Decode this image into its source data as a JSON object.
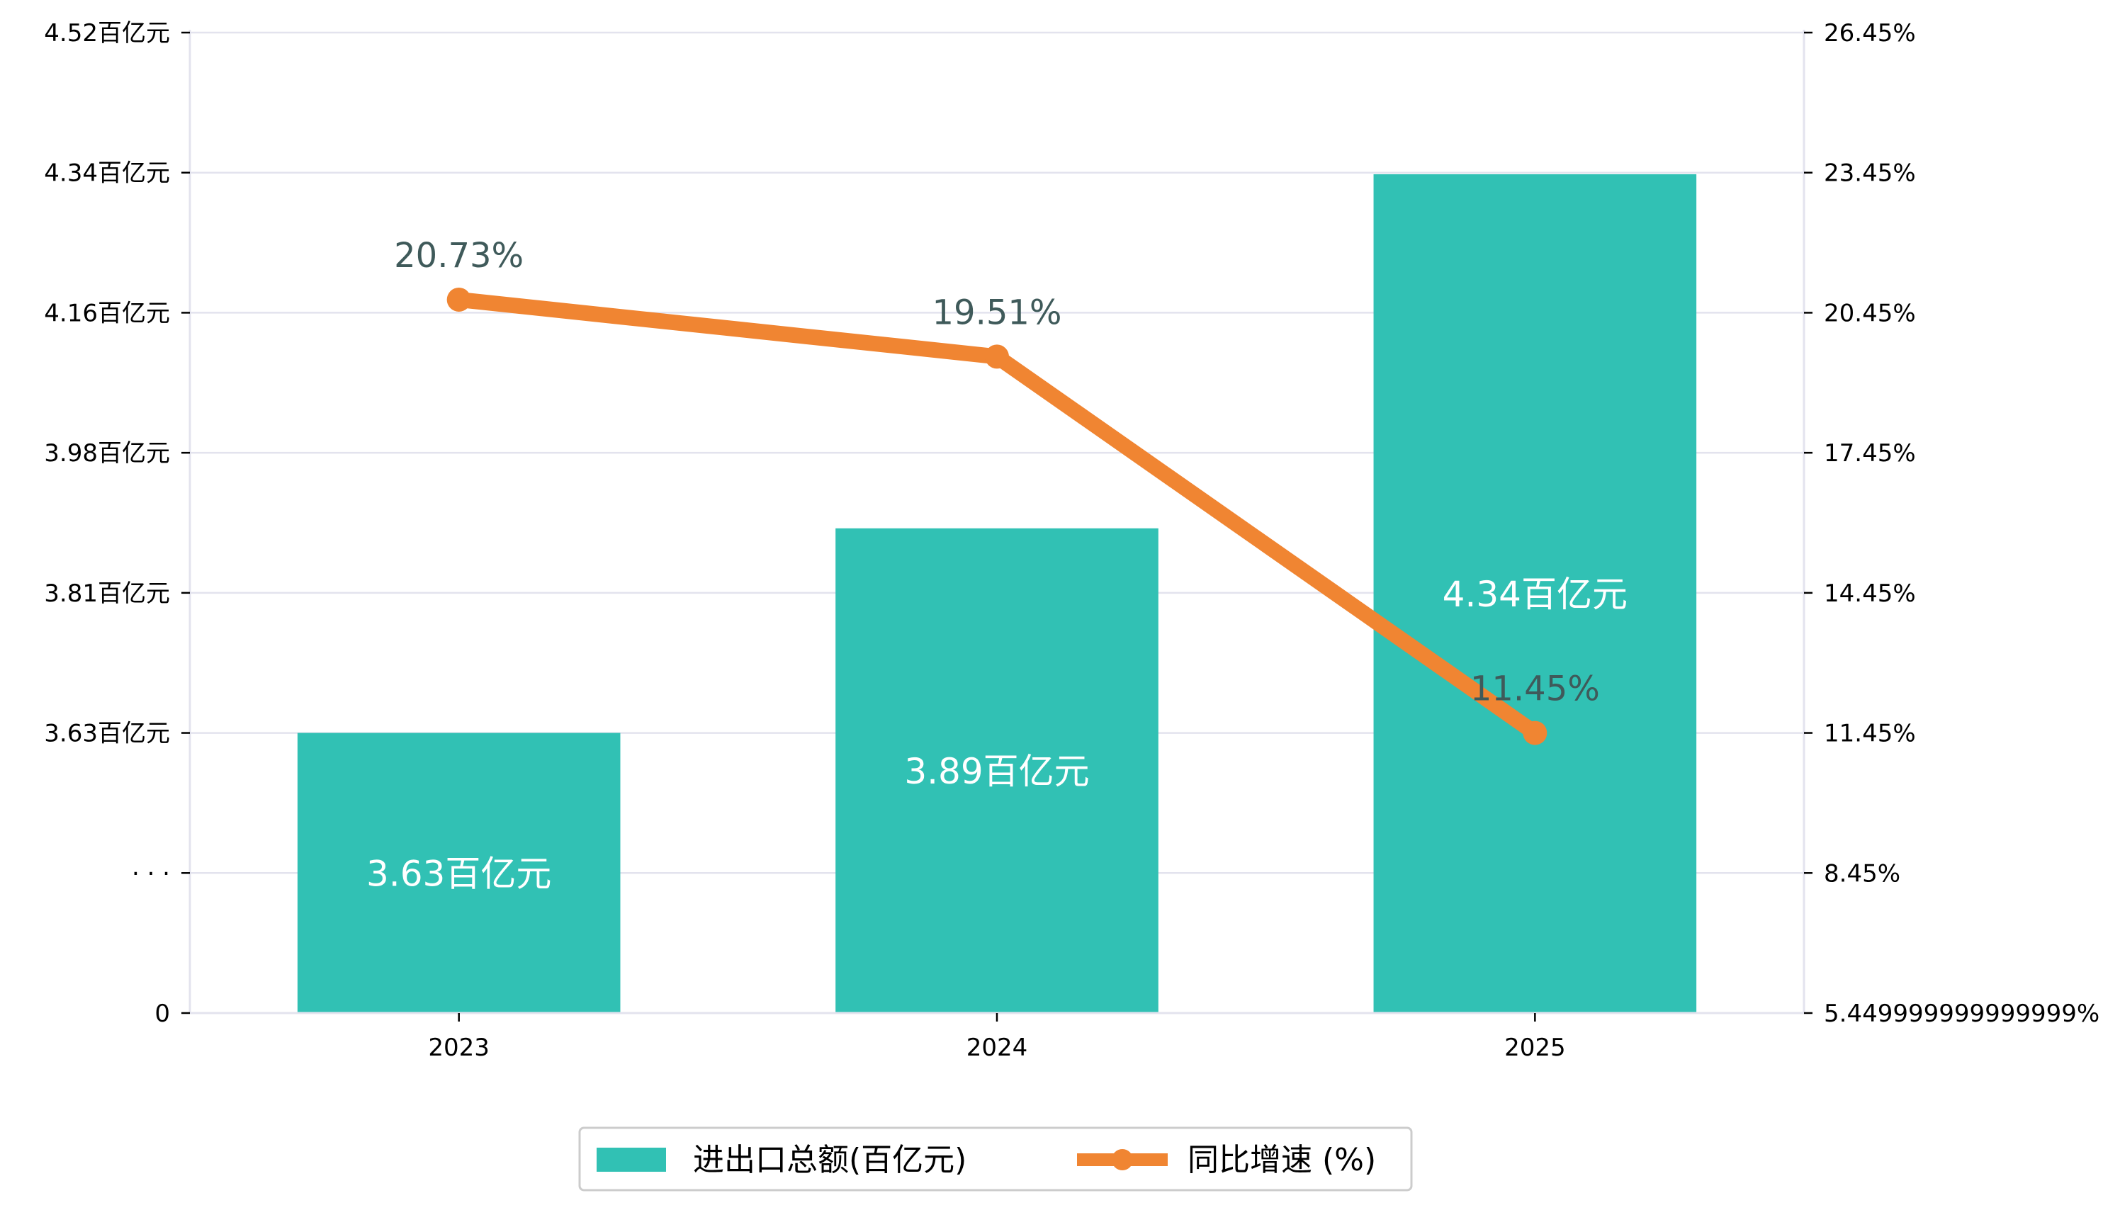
{
  "chart_data": {
    "type": "bar",
    "categories": [
      "2023",
      "2024",
      "2025"
    ],
    "series": [
      {
        "name": "进出口总额(百亿元)",
        "type": "bar",
        "axis": "left",
        "values": [
          3.63,
          3.89,
          4.34
        ],
        "labels": [
          "3.63百亿元",
          "3.89百亿元",
          "4.34百亿元"
        ],
        "color": "#31c1b4"
      },
      {
        "name": "同比增速 (%)",
        "type": "line",
        "axis": "right",
        "values": [
          20.73,
          19.51,
          11.45
        ],
        "labels": [
          "20.73%",
          "19.51%",
          "11.45%"
        ],
        "color": "#f08532"
      }
    ],
    "left_axis": {
      "ticks": [
        "0",
        "· · ·",
        "3.63百亿元",
        "3.81百亿元",
        "3.98百亿元",
        "4.16百亿元",
        "4.34百亿元",
        "4.52百亿元"
      ]
    },
    "right_axis": {
      "ticks": [
        "5.449999999999999%",
        "8.45%",
        "11.45%",
        "14.45%",
        "17.45%",
        "20.45%",
        "23.45%",
        "26.45%"
      ],
      "ylim": [
        5.45,
        26.45
      ]
    },
    "grid": true,
    "legend_position": "bottom-center"
  }
}
